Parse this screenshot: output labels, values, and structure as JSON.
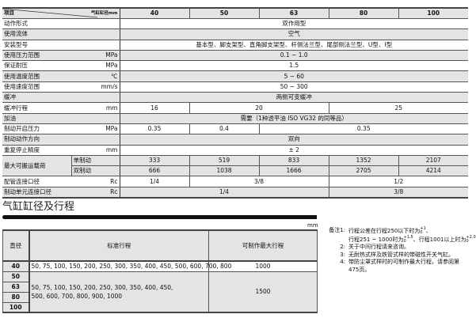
{
  "spec": {
    "header": {
      "item": "项目",
      "bore": "气缸缸径mm",
      "cols": [
        "40",
        "50",
        "63",
        "80",
        "100"
      ]
    },
    "action": {
      "label": "动作形式",
      "value": "双作用型"
    },
    "fluid": {
      "label": "使用流体",
      "value": "空气"
    },
    "mount": {
      "label": "安装型号",
      "value": "基本型、脚支架型、直角脚支架型、杆侧法兰型、尾部侧法兰型、U型、I型"
    },
    "pressure": {
      "label": "使用压力范围",
      "unit": "MPa",
      "value": "0.1 ~ 1.0"
    },
    "proof": {
      "label": "保证耐压",
      "unit": "MPa",
      "value": "1.5"
    },
    "temp": {
      "label": "使用温度范围",
      "unit": "℃",
      "value": "5 ~ 60"
    },
    "speed": {
      "label": "使用速度范围",
      "unit": "mm/s",
      "value": "50 ~ 300"
    },
    "cushion": {
      "label": "缓冲",
      "value": "两侧可变缓冲"
    },
    "cushion_stroke": {
      "label": "缓冲行程",
      "unit": "mm",
      "v40": "16",
      "v50_63": "20",
      "v80_100": "25"
    },
    "lube": {
      "label": "加油",
      "value": "需要（1种透平油 ISO VG32 的同等品）"
    },
    "brake_pressure": {
      "label": "制动开启压力",
      "unit": "MPa",
      "v40": "0.35",
      "v50": "0.4",
      "v63_100": "0.35"
    },
    "brake_dir": {
      "label": "制动动作方向",
      "value": "双向"
    },
    "repeat": {
      "label": "重复停止精度",
      "unit": "mm",
      "value": "± 2"
    },
    "load": {
      "label": "最大可搬运载荷",
      "single": {
        "label": "单制动",
        "values": [
          "333",
          "519",
          "833",
          "1352",
          "2107"
        ]
      },
      "double": {
        "label": "双制动",
        "values": [
          "666",
          "1038",
          "1666",
          "2705",
          "4214"
        ]
      }
    },
    "pipe": {
      "label": "配管连接口径",
      "unit": "Rc",
      "v40": "1/4",
      "v50_63": "3/8",
      "v80_100": "1/2"
    },
    "brake_port": {
      "label": "制动单元连接口径",
      "unit": "Rc",
      "v40_63": "1/4",
      "v80_100": "3/8"
    }
  },
  "section_title": "气缸缸径及行程",
  "stroke": {
    "unit": "mm",
    "headers": [
      "直径",
      "标准行程",
      "可制作最大行程"
    ],
    "row40": {
      "bore": "40",
      "strokes": "50, 75, 100, 150, 200, 250, 300, 350, 400, 450, 500, 600, 700, 800",
      "max": "1000"
    },
    "group": {
      "bores": [
        "50",
        "63",
        "80",
        "100"
      ],
      "strokes1": "50, 75, 100, 150, 200, 250, 300, 350, 400, 450,",
      "strokes2": "500, 600, 700, 800, 900, 1000",
      "max": "1500"
    }
  },
  "notes": {
    "n1_key": "备注1:",
    "n1a": "行程公差在行程250以下时为",
    "n1a_tol_up": "+1",
    "n1a_tol_dn": "0",
    "n1b": "行程251 ~ 1000时为",
    "n1b_tol_up": "+1.5",
    "n1b_tol_dn": "0",
    "n1c": "、行程1001以上时为",
    "n1c_tol_up": "+2.0",
    "n1c_tol_dn": "0",
    "n2_key": "2:",
    "n2": "关于中间行程请来咨询。",
    "n3_key": "3:",
    "n3": "无耐热式样及铁管式样的带磁性开关气缸。",
    "n4_key": "4:",
    "n4": "带防尘罩式样时的可制作最大行程，请参阅第475页。"
  }
}
